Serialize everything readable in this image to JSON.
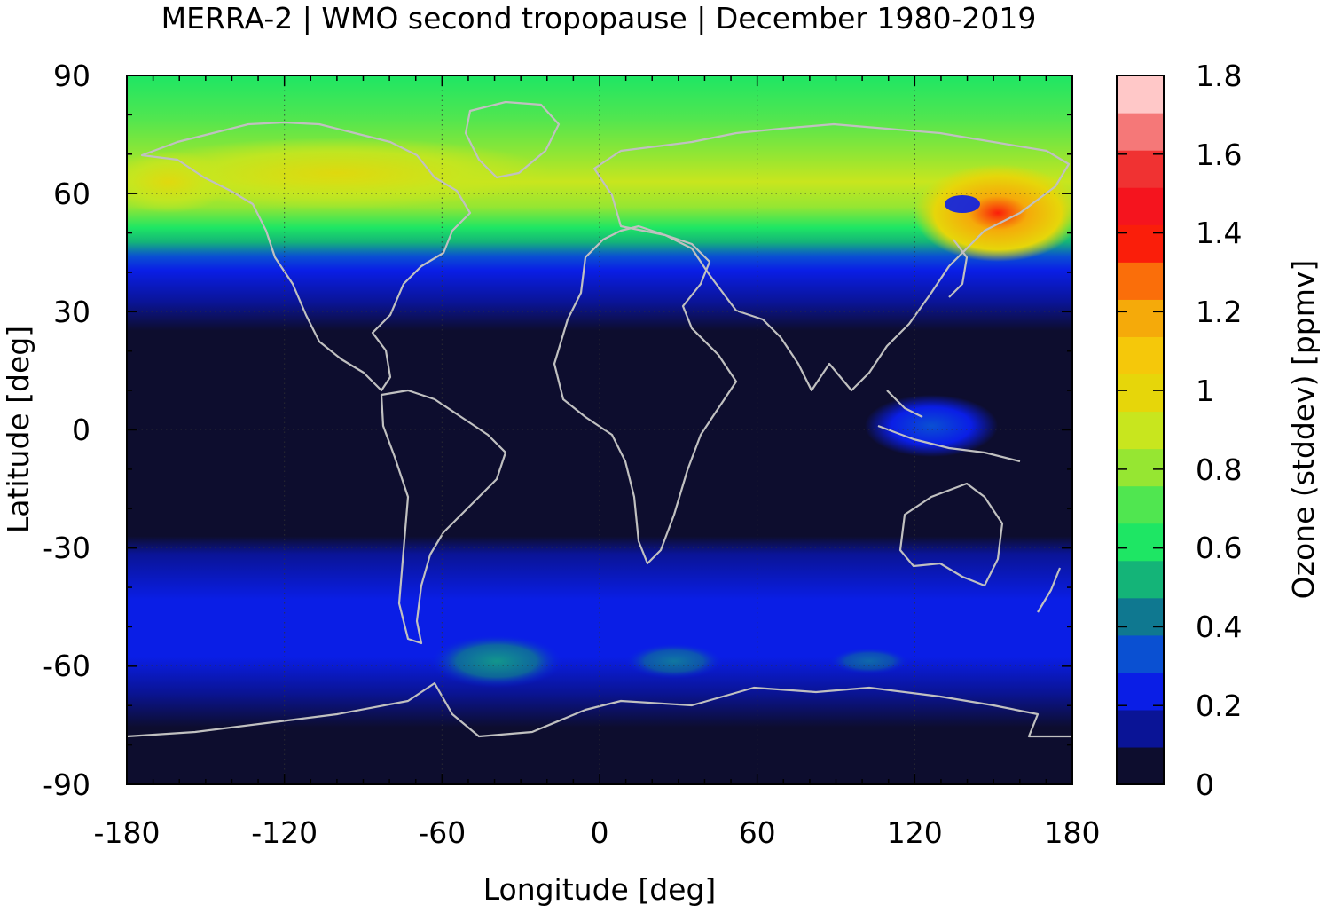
{
  "title": "MERRA-2 | WMO second tropopause | December 1980-2019",
  "map": {
    "x_label": "Longitude [deg]",
    "y_label": "Latitude [deg]",
    "x_range": [
      -180,
      180
    ],
    "y_range": [
      -90,
      90
    ],
    "x_ticks": [
      "-180",
      "-120",
      "-60",
      "0",
      "60",
      "120",
      "180"
    ],
    "y_ticks": [
      "90",
      "60",
      "30",
      "0",
      "-30",
      "-60",
      "-90"
    ],
    "grid": "dotted",
    "coastline_color": "#c0c0c0"
  },
  "colorbar": {
    "label": "Ozone (stddev) [ppmv]",
    "range": [
      0,
      1.8
    ],
    "ticks": [
      "0",
      "0.2",
      "0.4",
      "0.6",
      "0.8",
      "1",
      "1.2",
      "1.4",
      "1.6",
      "1.8"
    ],
    "colors": [
      "#0d0d2e",
      "#0a1496",
      "#0a1ee6",
      "#0a50d2",
      "#0f7890",
      "#14b478",
      "#1ee664",
      "#50e650",
      "#96e632",
      "#c8e61e",
      "#e6d60a",
      "#f5c80a",
      "#f5aa0a",
      "#fa6e0a",
      "#fa1e0a",
      "#f5141e",
      "#f03232",
      "#f57878",
      "#ffc8c8"
    ]
  }
}
